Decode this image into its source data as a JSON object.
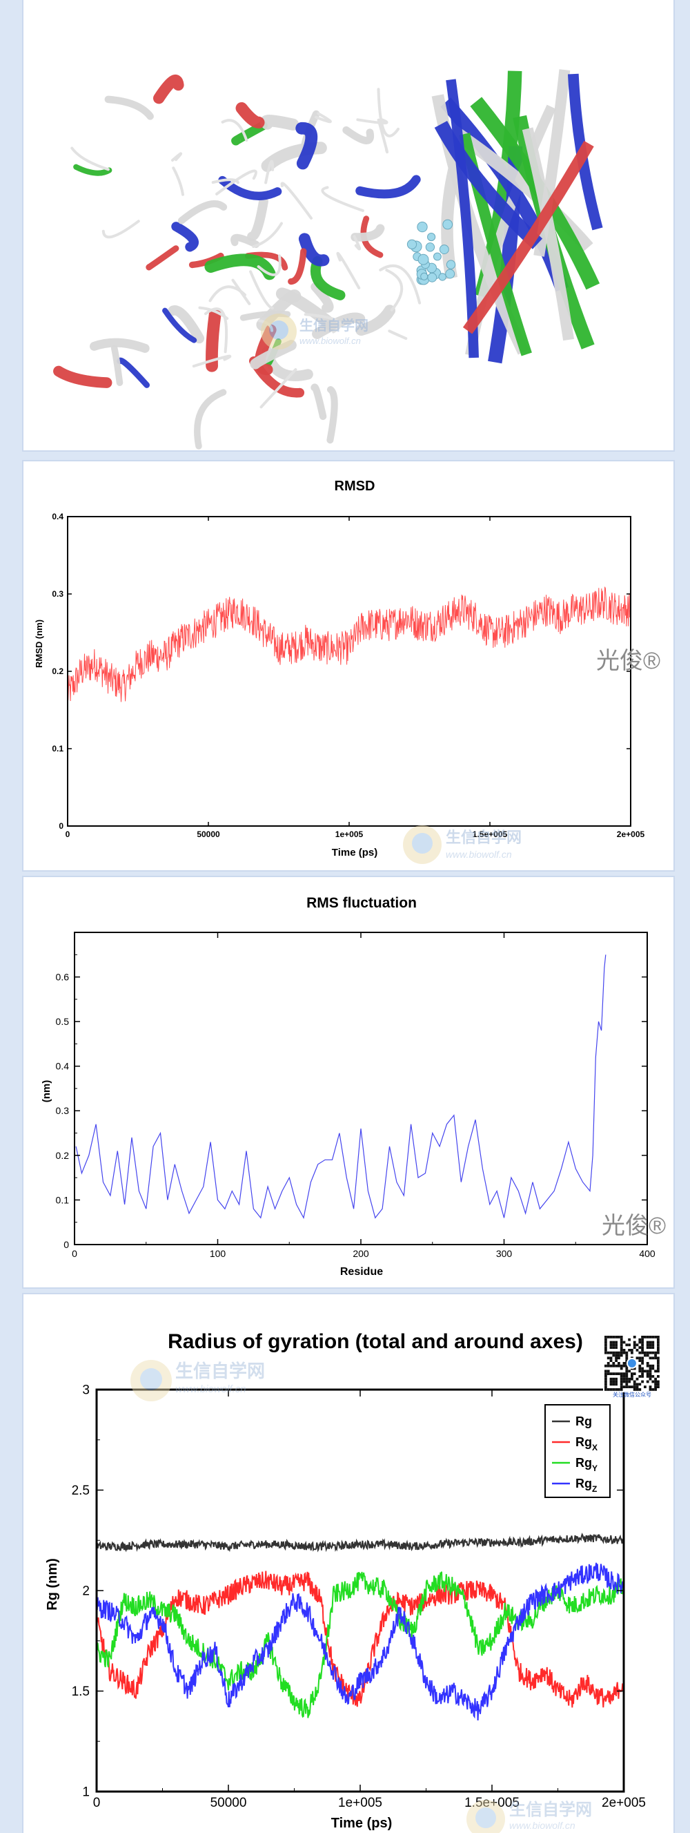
{
  "watermark": {
    "site_cn": "生信自学网",
    "site_url": "www.biowolf.cn",
    "author": "光俊®",
    "qr_caption": "关注微信公众号"
  },
  "molecule": {
    "description": "Protein ribbon structure with bound ligand",
    "colors": {
      "helix_white": "#d8d8d8",
      "green": "#2fb52f",
      "blue": "#2b3bc9",
      "red": "#d94545",
      "ligand": "#9fd8ea"
    }
  },
  "rmsd": {
    "chart_data": {
      "type": "line",
      "title": "RMSD",
      "xlabel": "Time (ps)",
      "ylabel": "RMSD (nm)",
      "xlim": [
        0,
        200000
      ],
      "ylim": [
        0,
        0.4
      ],
      "xticks": [
        0,
        50000,
        100000,
        150000,
        200000
      ],
      "xtick_labels": [
        "0",
        "50000",
        "1e+005",
        "1.5e+005",
        "2e+005"
      ],
      "yticks": [
        0,
        0.1,
        0.2,
        0.3,
        0.4
      ],
      "ytick_labels": [
        "0",
        "0.1",
        "0.2",
        "0.3",
        "0.4"
      ],
      "series": [
        {
          "color": "#ff4d4d",
          "x": [
            0,
            5000,
            10000,
            15000,
            20000,
            25000,
            30000,
            35000,
            40000,
            45000,
            50000,
            55000,
            60000,
            65000,
            70000,
            75000,
            80000,
            85000,
            90000,
            95000,
            100000,
            105000,
            110000,
            115000,
            120000,
            125000,
            130000,
            135000,
            140000,
            145000,
            150000,
            155000,
            160000,
            165000,
            170000,
            175000,
            180000,
            185000,
            190000,
            195000,
            200000
          ],
          "y": [
            0.17,
            0.2,
            0.21,
            0.19,
            0.18,
            0.21,
            0.22,
            0.22,
            0.24,
            0.25,
            0.26,
            0.27,
            0.28,
            0.27,
            0.25,
            0.23,
            0.23,
            0.24,
            0.23,
            0.23,
            0.23,
            0.26,
            0.26,
            0.26,
            0.27,
            0.26,
            0.26,
            0.27,
            0.28,
            0.27,
            0.25,
            0.25,
            0.26,
            0.27,
            0.28,
            0.27,
            0.28,
            0.28,
            0.29,
            0.28,
            0.28
          ]
        }
      ]
    }
  },
  "rmsf": {
    "chart_data": {
      "type": "line",
      "title": "RMS fluctuation",
      "xlabel": "Residue",
      "ylabel": "(nm)",
      "xlim": [
        0,
        400
      ],
      "ylim": [
        0,
        0.7
      ],
      "xticks": [
        0,
        100,
        200,
        300,
        400
      ],
      "xtick_labels": [
        "0",
        "100",
        "200",
        "300",
        "400"
      ],
      "yticks": [
        0,
        0.1,
        0.2,
        0.3,
        0.4,
        0.5,
        0.6
      ],
      "ytick_labels": [
        "0",
        "0.1",
        "0.2",
        "0.3",
        "0.4",
        "0.5",
        "0.6"
      ],
      "series": [
        {
          "color": "#4444ee",
          "x": [
            1,
            5,
            10,
            15,
            20,
            25,
            30,
            35,
            40,
            45,
            50,
            55,
            60,
            65,
            70,
            75,
            80,
            85,
            90,
            95,
            100,
            105,
            110,
            115,
            120,
            125,
            130,
            135,
            140,
            145,
            150,
            155,
            160,
            165,
            170,
            175,
            180,
            185,
            190,
            195,
            200,
            205,
            210,
            215,
            220,
            225,
            230,
            235,
            240,
            245,
            250,
            255,
            260,
            265,
            270,
            275,
            280,
            285,
            290,
            295,
            300,
            305,
            310,
            315,
            320,
            325,
            330,
            335,
            340,
            345,
            350,
            355,
            360,
            362,
            364,
            366,
            368,
            370,
            371
          ],
          "y": [
            0.22,
            0.16,
            0.2,
            0.27,
            0.14,
            0.11,
            0.21,
            0.09,
            0.24,
            0.12,
            0.08,
            0.22,
            0.25,
            0.1,
            0.18,
            0.12,
            0.07,
            0.1,
            0.13,
            0.23,
            0.1,
            0.08,
            0.12,
            0.09,
            0.21,
            0.08,
            0.06,
            0.13,
            0.08,
            0.12,
            0.15,
            0.09,
            0.06,
            0.14,
            0.18,
            0.19,
            0.19,
            0.25,
            0.15,
            0.08,
            0.26,
            0.12,
            0.06,
            0.08,
            0.22,
            0.14,
            0.11,
            0.27,
            0.15,
            0.16,
            0.25,
            0.22,
            0.27,
            0.29,
            0.14,
            0.22,
            0.28,
            0.17,
            0.09,
            0.12,
            0.06,
            0.15,
            0.12,
            0.07,
            0.14,
            0.08,
            0.1,
            0.12,
            0.17,
            0.23,
            0.17,
            0.14,
            0.12,
            0.2,
            0.42,
            0.5,
            0.48,
            0.62,
            0.65
          ]
        }
      ]
    }
  },
  "rg": {
    "chart_data": {
      "type": "line",
      "title": "Radius of gyration (total and around axes)",
      "xlabel": "Time (ps)",
      "ylabel": "Rg (nm)",
      "xlim": [
        0,
        200000
      ],
      "ylim": [
        1,
        3
      ],
      "xticks": [
        0,
        50000,
        100000,
        150000,
        200000
      ],
      "xtick_labels": [
        "0",
        "50000",
        "1e+005",
        "1.5e+005",
        "2e+005"
      ],
      "yticks": [
        1,
        1.5,
        2,
        2.5,
        3
      ],
      "ytick_labels": [
        "1",
        "1.5",
        "2",
        "2.5",
        "3"
      ],
      "legend_position": "top-right",
      "series": [
        {
          "name": "Rg",
          "color": "#333333",
          "x": [
            0,
            10000,
            20000,
            30000,
            40000,
            50000,
            60000,
            70000,
            80000,
            90000,
            100000,
            110000,
            120000,
            130000,
            140000,
            150000,
            160000,
            170000,
            180000,
            190000,
            200000
          ],
          "y": [
            2.22,
            2.22,
            2.23,
            2.23,
            2.23,
            2.22,
            2.23,
            2.23,
            2.22,
            2.22,
            2.23,
            2.23,
            2.22,
            2.23,
            2.24,
            2.24,
            2.24,
            2.25,
            2.26,
            2.26,
            2.25
          ]
        },
        {
          "name": "Rgx",
          "color": "#ff2a2a",
          "x": [
            0,
            5000,
            10000,
            15000,
            20000,
            25000,
            30000,
            35000,
            40000,
            45000,
            50000,
            55000,
            60000,
            65000,
            70000,
            75000,
            80000,
            85000,
            90000,
            95000,
            100000,
            105000,
            110000,
            115000,
            120000,
            125000,
            130000,
            135000,
            140000,
            145000,
            150000,
            155000,
            160000,
            165000,
            170000,
            175000,
            180000,
            185000,
            190000,
            195000,
            200000
          ],
          "y": [
            1.85,
            1.6,
            1.55,
            1.5,
            1.7,
            1.8,
            1.97,
            1.95,
            1.92,
            1.95,
            1.98,
            2.02,
            2.04,
            2.05,
            2.02,
            2.03,
            2.05,
            1.95,
            1.6,
            1.5,
            1.45,
            1.7,
            1.9,
            1.95,
            1.92,
            1.95,
            1.98,
            1.98,
            2.0,
            2.0,
            1.98,
            1.92,
            1.6,
            1.55,
            1.6,
            1.5,
            1.45,
            1.55,
            1.48,
            1.45,
            1.55
          ]
        },
        {
          "name": "Rgy",
          "color": "#22dd22",
          "x": [
            0,
            5000,
            10000,
            15000,
            20000,
            25000,
            30000,
            35000,
            40000,
            45000,
            50000,
            55000,
            60000,
            65000,
            70000,
            75000,
            80000,
            85000,
            90000,
            95000,
            100000,
            105000,
            110000,
            115000,
            120000,
            125000,
            130000,
            135000,
            140000,
            145000,
            150000,
            155000,
            160000,
            165000,
            170000,
            175000,
            180000,
            185000,
            190000,
            195000,
            200000
          ],
          "y": [
            1.7,
            1.65,
            1.95,
            1.92,
            1.95,
            1.9,
            1.88,
            1.75,
            1.7,
            1.65,
            1.55,
            1.6,
            1.6,
            1.75,
            1.55,
            1.45,
            1.4,
            1.55,
            1.98,
            2.0,
            2.05,
            2.02,
            2.0,
            1.85,
            1.8,
            2.0,
            2.05,
            2.02,
            1.95,
            1.7,
            1.75,
            1.9,
            1.85,
            1.85,
            1.95,
            2.0,
            1.92,
            1.95,
            1.98,
            1.98,
            2.02
          ]
        },
        {
          "name": "Rgz",
          "color": "#3333ff",
          "x": [
            0,
            5000,
            10000,
            15000,
            20000,
            25000,
            30000,
            35000,
            40000,
            45000,
            50000,
            55000,
            60000,
            65000,
            70000,
            75000,
            80000,
            85000,
            90000,
            95000,
            100000,
            105000,
            110000,
            115000,
            120000,
            125000,
            130000,
            135000,
            140000,
            145000,
            150000,
            155000,
            160000,
            165000,
            170000,
            175000,
            180000,
            185000,
            190000,
            195000,
            200000
          ],
          "y": [
            1.92,
            1.9,
            1.85,
            1.75,
            1.88,
            1.85,
            1.6,
            1.5,
            1.65,
            1.7,
            1.45,
            1.55,
            1.65,
            1.7,
            1.85,
            1.95,
            1.9,
            1.75,
            1.6,
            1.45,
            1.55,
            1.6,
            1.7,
            1.9,
            1.75,
            1.55,
            1.45,
            1.5,
            1.45,
            1.4,
            1.5,
            1.7,
            1.85,
            1.95,
            1.98,
            2.0,
            2.05,
            2.08,
            2.1,
            2.05,
            2.02
          ]
        }
      ]
    },
    "legend_labels": [
      {
        "main": "Rg",
        "sub": ""
      },
      {
        "main": "Rg",
        "sub": "X"
      },
      {
        "main": "Rg",
        "sub": "Y"
      },
      {
        "main": "Rg",
        "sub": "Z"
      }
    ]
  }
}
